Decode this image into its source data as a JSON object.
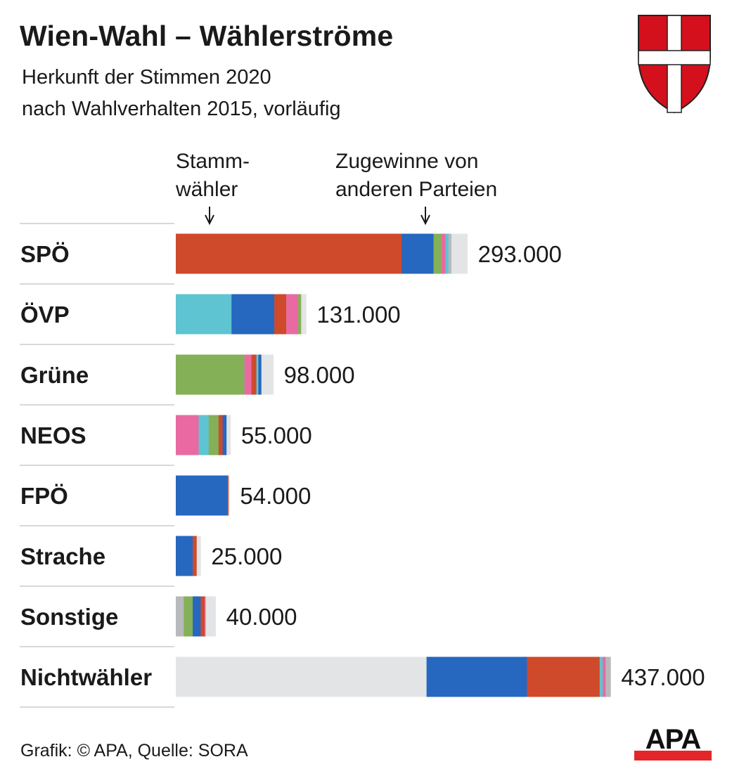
{
  "header": {
    "title": "Wien-Wahl – Wählerströme",
    "subtitle_line1": "Herkunft der Stimmen 2020",
    "subtitle_line2": "nach Wahlverhalten 2015, vorläufig"
  },
  "annotations": {
    "stamm_line1": "Stamm-",
    "stamm_line2": "wähler",
    "zugewinne_line1": "Zugewinne von",
    "zugewinne_line2": "anderen Parteien"
  },
  "footer": {
    "source": "Grafik: © APA, Quelle: SORA",
    "logo_text": "APA"
  },
  "colors": {
    "SPÖ": "#cf4a2a",
    "ÖVP": "#5ec4d2",
    "FPÖ": "#2667bf",
    "Grüne": "#84b057",
    "NEOS": "#e96aa3",
    "Sonstige": "#b8b9bb",
    "Nichtwähler": "#e3e4e6"
  },
  "chart_data": {
    "type": "bar",
    "orientation": "horizontal",
    "stacked": true,
    "title": "Wien-Wahl – Wählerströme",
    "xlabel": "",
    "ylabel": "",
    "unit": "Stimmen (Tausend, geschätzt aus Segmenten)",
    "categories": [
      "SPÖ",
      "ÖVP",
      "Grüne",
      "NEOS",
      "FPÖ",
      "Strache",
      "Sonstige",
      "Nichtwähler"
    ],
    "totals_labels": [
      "293.000",
      "131.000",
      "98.000",
      "55.000",
      "54.000",
      "25.000",
      "40.000",
      "437.000"
    ],
    "totals": [
      293,
      131,
      98,
      55,
      54,
      25,
      40,
      437
    ],
    "bars": [
      {
        "segments": [
          [
            "SPÖ",
            227
          ],
          [
            "FPÖ",
            32
          ],
          [
            "Grüne",
            8
          ],
          [
            "NEOS",
            4
          ],
          [
            "ÖVP",
            3
          ],
          [
            "Sonstige",
            3
          ],
          [
            "Nichtwähler",
            16
          ]
        ]
      },
      {
        "segments": [
          [
            "ÖVP",
            56
          ],
          [
            "FPÖ",
            43
          ],
          [
            "SPÖ",
            12
          ],
          [
            "NEOS",
            12
          ],
          [
            "Grüne",
            3
          ],
          [
            "Nichtwähler",
            5
          ]
        ]
      },
      {
        "segments": [
          [
            "Grüne",
            69
          ],
          [
            "NEOS",
            7
          ],
          [
            "SPÖ",
            5
          ],
          [
            "ÖVP",
            2
          ],
          [
            "FPÖ",
            3
          ],
          [
            "Nichtwähler",
            12
          ]
        ]
      },
      {
        "segments": [
          [
            "NEOS",
            23
          ],
          [
            "ÖVP",
            10
          ],
          [
            "Grüne",
            10
          ],
          [
            "SPÖ",
            4
          ],
          [
            "FPÖ",
            4
          ],
          [
            "Nichtwähler",
            4
          ]
        ]
      },
      {
        "segments": [
          [
            "FPÖ",
            52
          ],
          [
            "SPÖ",
            1
          ],
          [
            "Nichtwähler",
            1
          ]
        ]
      },
      {
        "segments": [
          [
            "FPÖ",
            17
          ],
          [
            "SPÖ",
            4
          ],
          [
            "Nichtwähler",
            4
          ]
        ]
      },
      {
        "segments": [
          [
            "Sonstige",
            8
          ],
          [
            "Grüne",
            9
          ],
          [
            "FPÖ",
            8
          ],
          [
            "SPÖ",
            4
          ],
          [
            "NEOS",
            1
          ],
          [
            "Nichtwähler",
            10
          ]
        ]
      },
      {
        "segments": [
          [
            "Nichtwähler",
            252
          ],
          [
            "FPÖ",
            101
          ],
          [
            "SPÖ",
            73
          ],
          [
            "ÖVP",
            3
          ],
          [
            "NEOS",
            3
          ],
          [
            "Sonstige",
            5
          ]
        ]
      }
    ]
  }
}
